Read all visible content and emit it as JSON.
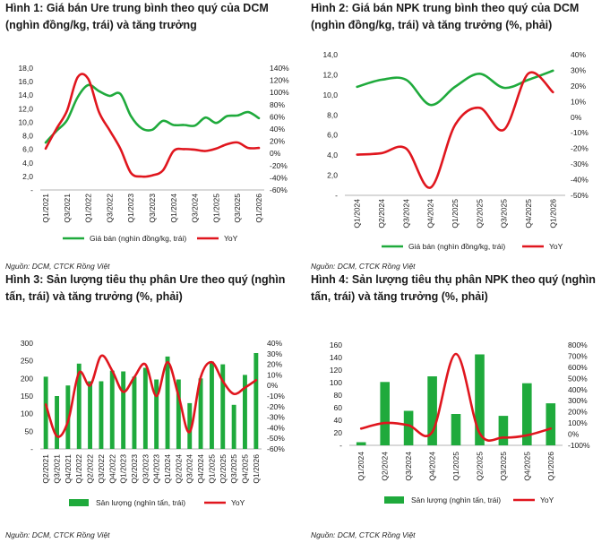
{
  "colors": {
    "green": "#1faa3c",
    "red": "#e0161e",
    "axis": "#9a9a9a"
  },
  "chart_data": [
    {
      "type": "line",
      "title": "Hình 1: Giá bán Ure trung bình theo quý của DCM (nghìn đồng/kg, trái) và tăng trưởng",
      "source": "Nguồn: DCM, CTCK Rồng Việt",
      "categories": [
        "Q1/2021",
        "Q2/2021",
        "Q3/2021",
        "Q4/2021",
        "Q1/2022",
        "Q2/2022",
        "Q3/2022",
        "Q4/2022",
        "Q1/2023",
        "Q2/2023",
        "Q3/2023",
        "Q4/2023",
        "Q1/2024",
        "Q2/2024",
        "Q3/2024",
        "Q4/2024",
        "Q1/2025",
        "Q2/2025",
        "Q3/2025",
        "Q4/2025",
        "Q1/2026"
      ],
      "x_tick_labels": [
        "Q1/2021",
        "Q3/2021",
        "Q1/2022",
        "Q3/2022",
        "Q1/2023",
        "Q3/2023",
        "Q1/2024",
        "Q3/2024",
        "Q1/2025",
        "Q3/2025",
        "Q1/2026"
      ],
      "ylim_left": [
        0,
        18
      ],
      "yticks_left": [
        "-",
        "2,0",
        "4,0",
        "6,0",
        "8,0",
        "10,0",
        "12,0",
        "14,0",
        "16,0",
        "18,0"
      ],
      "ylim_right": [
        -60,
        140
      ],
      "yticks_right": [
        "-60%",
        "-40%",
        "-20%",
        "0%",
        "20%",
        "40%",
        "60%",
        "80%",
        "100%",
        "120%",
        "140%"
      ],
      "series": [
        {
          "name": "Giá bán (nghìn đồng/kg, trái)",
          "axis": "left",
          "color": "#1faa3c",
          "render": "line",
          "values": [
            7.0,
            8.7,
            10.3,
            13.7,
            15.5,
            14.6,
            13.9,
            14.2,
            10.9,
            9.1,
            8.9,
            10.2,
            9.6,
            9.6,
            9.5,
            10.7,
            9.9,
            10.9,
            11.0,
            11.5,
            10.6
          ]
        },
        {
          "name": "YoY",
          "axis": "right",
          "color": "#e0161e",
          "render": "line",
          "values": [
            8,
            40,
            70,
            125,
            122,
            68,
            38,
            8,
            -32,
            -38,
            -36,
            -28,
            4,
            7,
            6,
            4,
            8,
            15,
            18,
            9,
            9
          ]
        }
      ]
    },
    {
      "type": "line",
      "title": "Hình 2: Giá bán NPK trung bình theo quý của DCM (nghìn đồng/kg, trái) và tăng trưởng (%, phải)",
      "source": "Nguồn: DCM, CTCK Rồng Việt",
      "categories": [
        "Q1/2024",
        "Q2/2024",
        "Q3/2024",
        "Q4/2024",
        "Q1/2025",
        "Q2/2025",
        "Q3/2025",
        "Q4/2025",
        "Q1/2026"
      ],
      "x_tick_labels": [
        "Q1/2024",
        "Q2/2024",
        "Q3/2024",
        "Q4/2024",
        "Q1/2025",
        "Q2/2025",
        "Q3/2025",
        "Q4/2025",
        "Q1/2026"
      ],
      "ylim_left": [
        0,
        14
      ],
      "yticks_left": [
        "-",
        "2,0",
        "4,0",
        "6,0",
        "8,0",
        "10,0",
        "12,0",
        "14,0"
      ],
      "ylim_right": [
        -50,
        40
      ],
      "yticks_right": [
        "-50%",
        "-40%",
        "-30%",
        "-20%",
        "-10%",
        "0%",
        "10%",
        "20%",
        "30%",
        "40%"
      ],
      "series": [
        {
          "name": "Giá bán (nghìn đồng/kg, trái)",
          "axis": "left",
          "color": "#1faa3c",
          "render": "line",
          "values": [
            10.8,
            11.5,
            11.5,
            9.0,
            10.8,
            12.1,
            10.7,
            11.5,
            12.4
          ]
        },
        {
          "name": "YoY",
          "axis": "right",
          "color": "#e0161e",
          "render": "line",
          "values": [
            -24,
            -23,
            -20,
            -45,
            -5,
            6,
            -8,
            28,
            16
          ]
        }
      ]
    },
    {
      "type": "bar",
      "title": "Hình 3: Sản lượng tiêu thụ phân Ure theo quý (nghìn tấn, trái) và tăng trưởng (%, phải)",
      "source": "Nguồn: DCM, CTCK Rồng Việt",
      "categories": [
        "Q2/2021",
        "Q3/2021",
        "Q4/2021",
        "Q1/2022",
        "Q2/2022",
        "Q3/2022",
        "Q4/2022",
        "Q1/2023",
        "Q2/2023",
        "Q3/2023",
        "Q4/2023",
        "Q1/2024",
        "Q2/2024",
        "Q3/2024",
        "Q4/2024",
        "Q1/2025",
        "Q2/2025",
        "Q3/2025",
        "Q4/2025",
        "Q1/2026"
      ],
      "x_tick_labels": [
        "Q2/2021",
        "Q3/2021",
        "Q4/2021",
        "Q1/2022",
        "Q2/2022",
        "Q3/2022",
        "Q4/2022",
        "Q1/2023",
        "Q2/2023",
        "Q3/2023",
        "Q4/2023",
        "Q1/2024",
        "Q2/2024",
        "Q3/2024",
        "Q4/2024",
        "Q1/2025",
        "Q2/2025",
        "Q3/2025",
        "Q4/2025",
        "Q1/2026"
      ],
      "ylim_left": [
        0,
        300
      ],
      "yticks_left": [
        "-",
        "50",
        "100",
        "150",
        "200",
        "250",
        "300"
      ],
      "ylim_right": [
        -60,
        40
      ],
      "yticks_right": [
        "-60%",
        "-50%",
        "-40%",
        "-30%",
        "-20%",
        "-10%",
        "0%",
        "10%",
        "20%",
        "30%",
        "40%"
      ],
      "series": [
        {
          "name": "Sản lượng (nghìn tấn, trái)",
          "axis": "left",
          "color": "#1faa3c",
          "render": "bar",
          "values": [
            205,
            150,
            180,
            242,
            192,
            192,
            222,
            220,
            205,
            230,
            197,
            262,
            197,
            130,
            200,
            248,
            240,
            125,
            210,
            272
          ]
        },
        {
          "name": "YoY",
          "axis": "right",
          "color": "#e0161e",
          "render": "line",
          "values": [
            -18,
            -48,
            -34,
            12,
            0,
            28,
            14,
            -6,
            8,
            20,
            -10,
            22,
            -10,
            -44,
            8,
            22,
            4,
            -8,
            -2,
            5
          ]
        }
      ]
    },
    {
      "type": "bar",
      "title": "Hình 4: Sản lượng tiêu thụ phân NPK theo quý (nghìn tấn, trái) và tăng trưởng (%, phải)",
      "source": "Nguồn: DCM, CTCK Rồng Việt",
      "categories": [
        "Q1/2024",
        "Q2/2024",
        "Q3/2024",
        "Q4/2024",
        "Q1/2025",
        "Q2/2025",
        "Q3/2025",
        "Q4/2025",
        "Q1/2026"
      ],
      "x_tick_labels": [
        "Q1/2024",
        "Q2/2024",
        "Q3/2024",
        "Q4/2024",
        "Q1/2025",
        "Q2/2025",
        "Q3/2025",
        "Q4/2025",
        "Q1/2026"
      ],
      "ylim_left": [
        0,
        160
      ],
      "yticks_left": [
        "-",
        "20",
        "40",
        "60",
        "80",
        "100",
        "120",
        "140",
        "160"
      ],
      "ylim_right": [
        -100,
        800
      ],
      "yticks_right": [
        "-100%",
        "0%",
        "100%",
        "200%",
        "300%",
        "400%",
        "500%",
        "600%",
        "700%",
        "800%"
      ],
      "series": [
        {
          "name": "Sản lượng (nghìn tấn, trái)",
          "axis": "left",
          "color": "#1faa3c",
          "render": "bar",
          "values": [
            5,
            101,
            55,
            110,
            50,
            145,
            47,
            99,
            67
          ]
        },
        {
          "name": "YoY",
          "axis": "right",
          "color": "#e0161e",
          "render": "line",
          "values": [
            50,
            100,
            80,
            20,
            720,
            10,
            -30,
            -10,
            50
          ]
        }
      ]
    }
  ]
}
